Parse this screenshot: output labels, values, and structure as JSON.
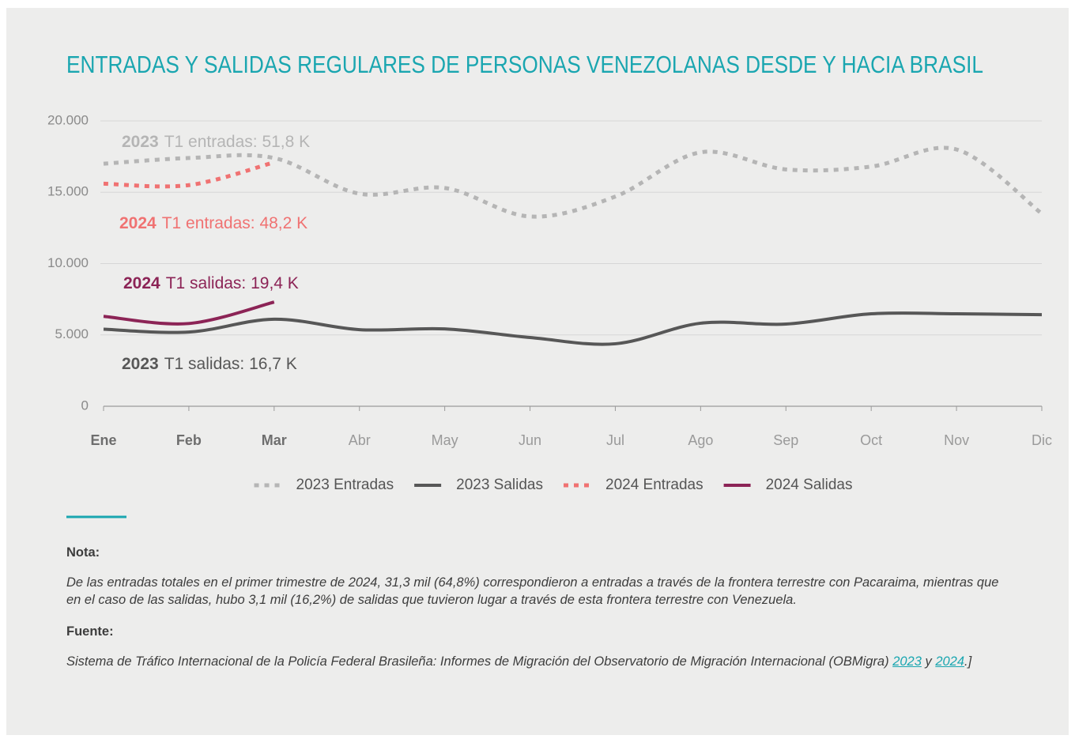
{
  "chart_data": {
    "type": "line",
    "title": "ENTRADAS Y SALIDAS REGULARES DE PERSONAS VENEZOLANAS DESDE Y HACIA BRASIL",
    "categories": [
      "Ene",
      "Feb",
      "Mar",
      "Abr",
      "May",
      "Jun",
      "Jul",
      "Ago",
      "Sep",
      "Oct",
      "Nov",
      "Dic"
    ],
    "highlight_categories": [
      "Ene",
      "Feb",
      "Mar"
    ],
    "ylim": [
      0,
      20000
    ],
    "yticks": [
      0,
      {
        "value": 5000,
        "label": "5.000"
      },
      {
        "value": 10000,
        "label": "10.000"
      },
      {
        "value": 15000,
        "label": "15.000"
      },
      {
        "value": 20000,
        "label": "20.000"
      }
    ],
    "grid": true,
    "legend": "bottom",
    "series": [
      {
        "name": "2023 Entradas",
        "color": "#b5b5b5",
        "dashed": true,
        "values": [
          17000,
          17400,
          17400,
          14900,
          15300,
          13300,
          14700,
          17800,
          16600,
          16800,
          18000,
          13500
        ]
      },
      {
        "name": "2023 Salidas",
        "color": "#575757",
        "dashed": false,
        "values": [
          5400,
          5200,
          6100,
          5370,
          5420,
          4820,
          4380,
          5820,
          5760,
          6480,
          6480,
          6420
        ]
      },
      {
        "name": "2024 Entradas",
        "color": "#f07272",
        "dashed": true,
        "values": [
          15600,
          15500,
          17100,
          null,
          null,
          null,
          null,
          null,
          null,
          null,
          null,
          null
        ]
      },
      {
        "name": "2024 Salidas",
        "color": "#8c2456",
        "dashed": false,
        "values": [
          6300,
          5800,
          7300,
          null,
          null,
          null,
          null,
          null,
          null,
          null,
          null,
          null
        ]
      }
    ],
    "annotations": [
      {
        "year": "2023",
        "text": "T1 entradas: 51,8 K",
        "color": "#b5b5b5"
      },
      {
        "year": "2024",
        "text": "T1 entradas: 48,2 K",
        "color": "#f07272"
      },
      {
        "year": "2024",
        "text": "T1 salidas: 19,4 K",
        "color": "#8c2456"
      },
      {
        "year": "2023",
        "text": "T1 salidas: 16,7 K",
        "color": "#575757"
      }
    ]
  },
  "note": {
    "label": "Nota:",
    "text": "De las entradas totales en el primer trimestre de 2024, 31,3 mil (64,8%) correspondieron a entradas a través de la frontera terrestre con Pacaraima, mientras que en el caso de las salidas, hubo 3,1 mil (16,2%) de salidas que tuvieron lugar a través de esta frontera terrestre con Venezuela."
  },
  "source": {
    "label": "Fuente:",
    "text": "Sistema de Tráfico Internacional de la Policía Federal Brasileña: Informes de Migración del Observatorio de Migración Internacional (OBMigra) ",
    "links": [
      "2023",
      "2024"
    ],
    "joiner": " y ",
    "end": ".]"
  }
}
